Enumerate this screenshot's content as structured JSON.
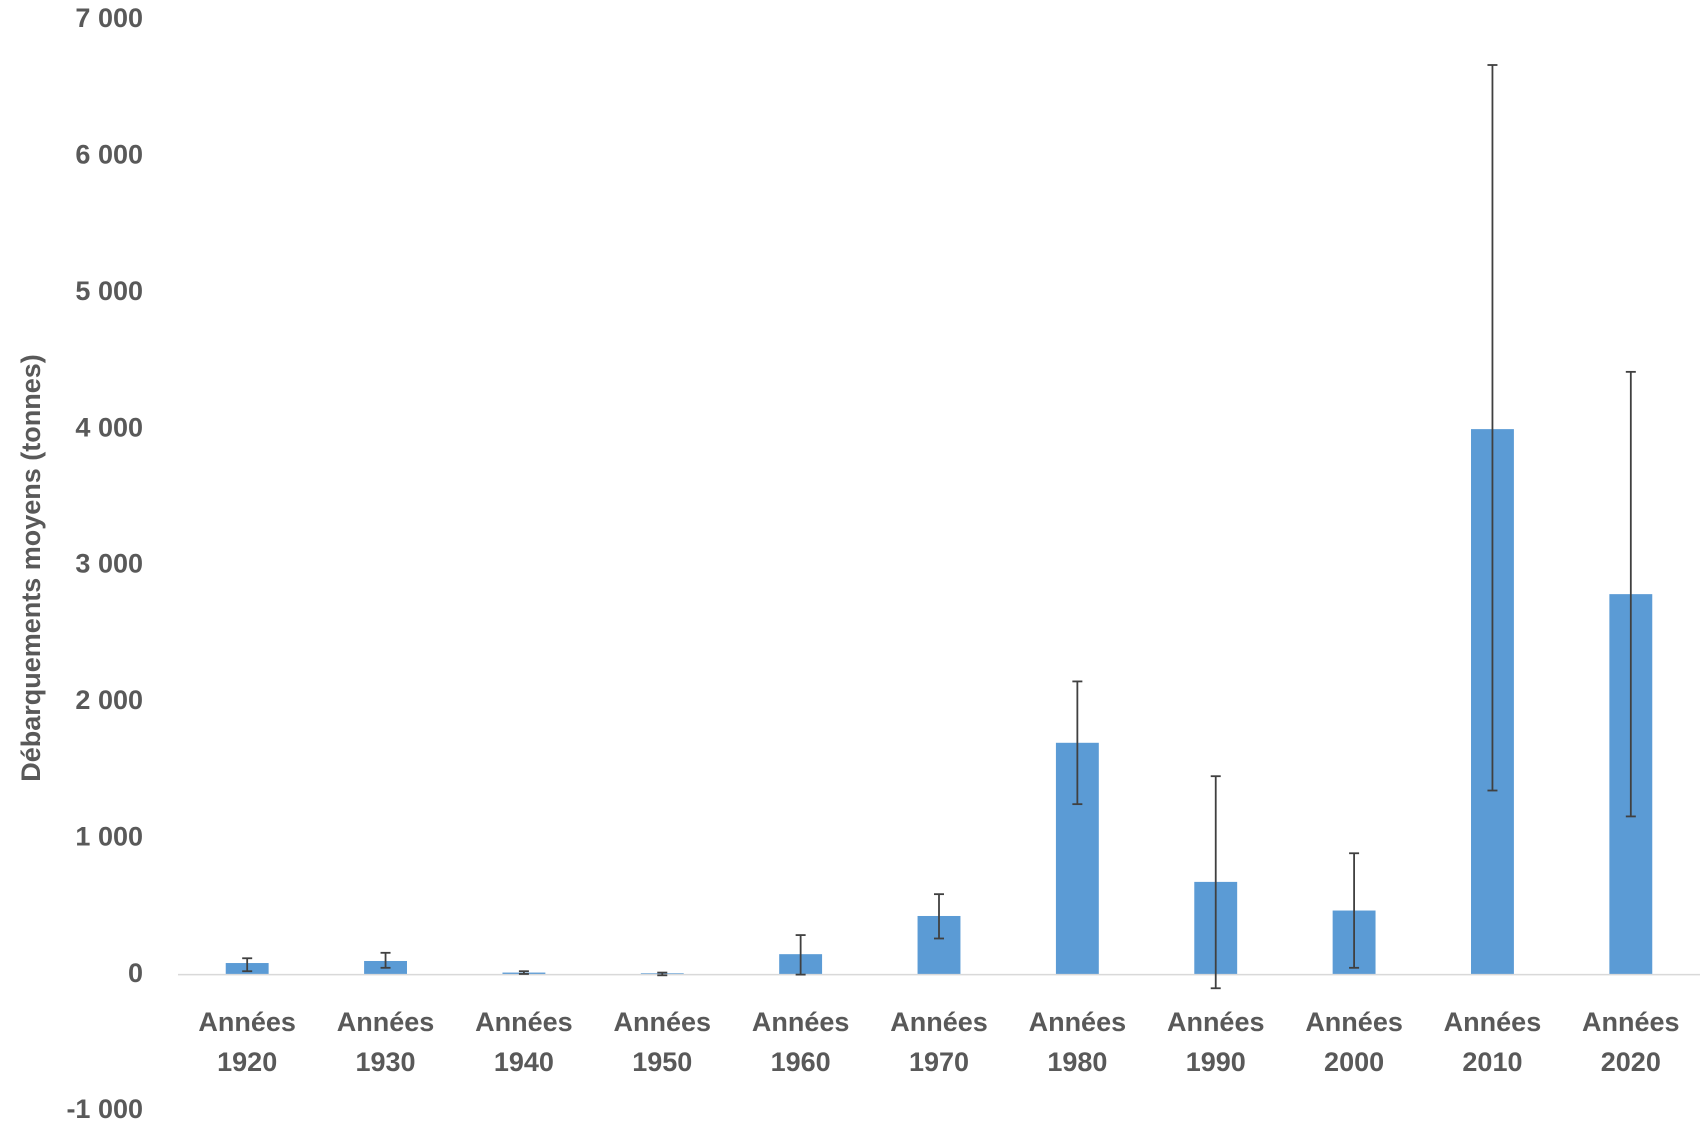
{
  "chart_data": {
    "type": "bar",
    "title": "",
    "xlabel": "",
    "ylabel": "Débarquements moyens (tonnes)",
    "ylim": [
      -1000,
      7000
    ],
    "yticks": [
      -1000,
      0,
      1000,
      2000,
      3000,
      4000,
      5000,
      6000,
      7000
    ],
    "ytick_labels": [
      "-1 000",
      "0",
      "1 000",
      "2 000",
      "3 000",
      "4 000",
      "5 000",
      "6 000",
      "7 000"
    ],
    "grid": false,
    "legend": "none",
    "bar_color": "#5B9BD5",
    "errorbar_color": "#404040",
    "categories": [
      [
        "Années",
        "1920"
      ],
      [
        "Années",
        "1930"
      ],
      [
        "Années",
        "1940"
      ],
      [
        "Années",
        "1950"
      ],
      [
        "Années",
        "1960"
      ],
      [
        "Années",
        "1970"
      ],
      [
        "Années",
        "1980"
      ],
      [
        "Années",
        "1990"
      ],
      [
        "Années",
        "2000"
      ],
      [
        "Années",
        "2010"
      ],
      [
        "Années",
        "2020"
      ]
    ],
    "values": [
      85,
      100,
      15,
      10,
      150,
      430,
      1700,
      680,
      470,
      4000,
      2790
    ],
    "error_low": [
      60,
      50,
      10,
      15,
      150,
      165,
      450,
      780,
      420,
      2650,
      1630
    ],
    "error_high": [
      35,
      60,
      10,
      5,
      140,
      160,
      450,
      775,
      420,
      2670,
      1630
    ]
  }
}
